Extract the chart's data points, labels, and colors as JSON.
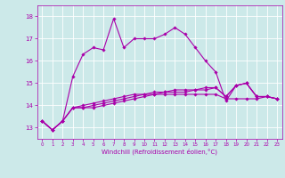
{
  "xlabel": "Windchill (Refroidissement éolien,°C)",
  "x": [
    0,
    1,
    2,
    3,
    4,
    5,
    6,
    7,
    8,
    9,
    10,
    11,
    12,
    13,
    14,
    15,
    16,
    17,
    18,
    19,
    20,
    21,
    22,
    23
  ],
  "line1": [
    13.3,
    12.9,
    13.3,
    15.3,
    16.3,
    16.6,
    16.5,
    17.9,
    16.6,
    17.0,
    17.0,
    17.0,
    17.2,
    17.5,
    17.2,
    16.6,
    16.0,
    15.5,
    14.2,
    14.9,
    15.0,
    14.4,
    14.4,
    14.3
  ],
  "line2": [
    13.3,
    12.9,
    13.3,
    13.9,
    13.9,
    13.9,
    14.0,
    14.1,
    14.2,
    14.3,
    14.4,
    14.5,
    14.5,
    14.5,
    14.5,
    14.5,
    14.5,
    14.5,
    14.3,
    14.3,
    14.3,
    14.3,
    14.4,
    14.3
  ],
  "line3": [
    13.3,
    12.9,
    13.3,
    13.9,
    13.9,
    14.0,
    14.1,
    14.2,
    14.3,
    14.4,
    14.5,
    14.5,
    14.6,
    14.6,
    14.6,
    14.7,
    14.8,
    14.8,
    14.4,
    14.9,
    15.0,
    14.4,
    14.4,
    14.3
  ],
  "line4": [
    13.3,
    12.9,
    13.3,
    13.9,
    14.0,
    14.1,
    14.2,
    14.3,
    14.4,
    14.5,
    14.5,
    14.6,
    14.6,
    14.7,
    14.7,
    14.7,
    14.7,
    14.8,
    14.4,
    14.9,
    15.0,
    14.4,
    14.4,
    14.3
  ],
  "ylim": [
    12.5,
    18.5
  ],
  "yticks": [
    13,
    14,
    15,
    16,
    17,
    18
  ],
  "bg_color": "#cce9e9",
  "line_color": "#aa00aa",
  "grid_color": "#ffffff"
}
